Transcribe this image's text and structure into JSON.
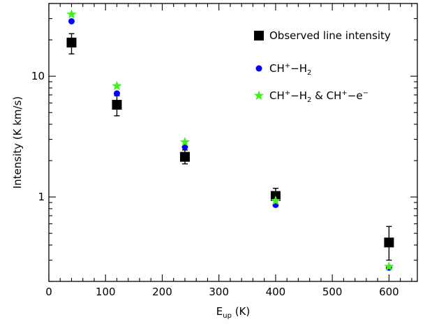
{
  "chart_data": {
    "type": "scatter",
    "title": "",
    "xlabel_main": "E",
    "xlabel_sub": "up",
    "xlabel_unit": " (K)",
    "ylabel": "Intensity (K km/s)",
    "xlim": [
      0,
      650
    ],
    "ylim": [
      0.2,
      40
    ],
    "y_scale": "log",
    "grid": false,
    "legend_position": "top-right",
    "x_ticks": [
      0,
      100,
      200,
      300,
      400,
      500,
      600
    ],
    "x_tick_labels": [
      "0",
      "100",
      "200",
      "300",
      "400",
      "500",
      "600"
    ],
    "y_ticks": [
      1,
      10
    ],
    "y_tick_labels": [
      "1",
      "10"
    ],
    "series": [
      {
        "name": "Observed line intensity",
        "marker": "square",
        "color": "#000000",
        "x": [
          40,
          120,
          240,
          400,
          600
        ],
        "y": [
          19.0,
          5.8,
          2.15,
          1.02,
          0.42
        ],
        "err_low": [
          15.3,
          4.7,
          1.88,
          0.87,
          0.3
        ],
        "err_high": [
          22.5,
          6.9,
          2.45,
          1.18,
          0.57
        ]
      },
      {
        "name_parts": [
          {
            "t": "CH",
            "s": "n"
          },
          {
            "t": "+",
            "s": "sup"
          },
          {
            "t": "−H",
            "s": "n"
          },
          {
            "t": "2",
            "s": "sub"
          }
        ],
        "marker": "circle",
        "color": "#0000ff",
        "x": [
          40,
          120,
          240,
          400,
          600
        ],
        "y": [
          28.5,
          7.2,
          2.6,
          0.86,
          0.26
        ]
      },
      {
        "name_parts": [
          {
            "t": "CH",
            "s": "n"
          },
          {
            "t": "+",
            "s": "sup"
          },
          {
            "t": "−H",
            "s": "n"
          },
          {
            "t": "2",
            "s": "sub"
          },
          {
            "t": " & CH",
            "s": "n"
          },
          {
            "t": "+",
            "s": "sup"
          },
          {
            "t": "−e",
            "s": "n"
          },
          {
            "t": "−",
            "s": "sup"
          }
        ],
        "marker": "star",
        "color": "#44ee22",
        "x": [
          40,
          120,
          240,
          400,
          600
        ],
        "y": [
          32.5,
          8.3,
          2.85,
          0.93,
          0.265
        ]
      }
    ]
  }
}
